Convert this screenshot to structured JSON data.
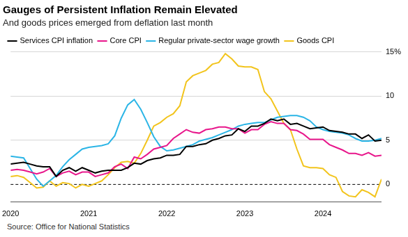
{
  "chart_data": {
    "type": "line",
    "title": "Gauges of Persistent Inflation Remain Elevated",
    "subtitle": "And goods prices emerged from deflation last month",
    "source": "Source: Office for National Statistics",
    "categories": [
      "2020",
      null,
      null,
      null,
      null,
      null,
      null,
      null,
      null,
      null,
      null,
      null,
      "2021",
      null,
      null,
      null,
      null,
      null,
      null,
      null,
      null,
      null,
      null,
      null,
      "2022",
      null,
      null,
      null,
      null,
      null,
      null,
      null,
      null,
      null,
      null,
      null,
      "2023",
      null,
      null,
      null,
      null,
      null,
      null,
      null,
      null,
      null,
      null,
      null,
      "2024",
      null,
      null,
      null,
      null,
      null,
      null,
      null,
      null,
      null
    ],
    "series": [
      {
        "name": "Services CPI inflation",
        "color": "#000000",
        "values": [
          2.3,
          2.4,
          2.5,
          2.3,
          2.1,
          2.0,
          2.0,
          0.9,
          1.6,
          1.9,
          1.5,
          1.9,
          1.6,
          1.3,
          1.5,
          1.6,
          1.6,
          1.6,
          1.9,
          2.4,
          2.3,
          2.7,
          2.9,
          3.0,
          3.3,
          3.3,
          3.4,
          4.3,
          4.3,
          4.5,
          4.6,
          5.0,
          5.2,
          5.5,
          5.6,
          6.3,
          6.0,
          6.6,
          6.6,
          6.9,
          7.4,
          7.2,
          7.4,
          6.8,
          6.9,
          6.6,
          6.3,
          6.4,
          6.5,
          6.1,
          6.0,
          5.9,
          5.7,
          5.7,
          5.2,
          5.6,
          4.9,
          5.0
        ]
      },
      {
        "name": "Core CPI",
        "color": "#e8168b",
        "values": [
          1.6,
          1.7,
          1.6,
          1.4,
          1.2,
          1.4,
          1.8,
          0.9,
          1.3,
          1.5,
          1.1,
          1.4,
          1.4,
          0.9,
          1.1,
          1.3,
          2.0,
          2.3,
          1.8,
          3.1,
          2.9,
          3.4,
          4.0,
          4.2,
          4.4,
          5.2,
          5.7,
          6.2,
          5.9,
          5.8,
          6.2,
          6.3,
          6.5,
          6.5,
          6.3,
          6.3,
          5.8,
          6.2,
          6.2,
          6.8,
          7.1,
          6.9,
          6.9,
          6.2,
          6.1,
          5.7,
          5.1,
          5.1,
          5.1,
          4.5,
          4.2,
          3.9,
          3.5,
          3.5,
          3.3,
          3.6,
          3.2,
          3.3
        ]
      },
      {
        "name": "Regular private-sector wage growth",
        "color": "#2bb5e6",
        "values": [
          3.2,
          3.1,
          3.0,
          1.8,
          0.6,
          -0.2,
          0.4,
          1.0,
          2.0,
          2.8,
          3.4,
          4.0,
          4.2,
          4.3,
          4.4,
          4.6,
          5.5,
          7.5,
          9.0,
          9.6,
          8.5,
          7.0,
          5.4,
          4.3,
          3.8,
          3.9,
          4.1,
          4.3,
          4.5,
          4.9,
          5.1,
          5.3,
          5.6,
          5.9,
          6.2,
          6.6,
          6.8,
          6.9,
          7.0,
          7.0,
          7.3,
          7.6,
          7.7,
          7.8,
          7.8,
          7.6,
          7.2,
          6.5,
          6.2,
          6.0,
          5.9,
          5.8,
          5.6,
          5.2,
          4.9,
          4.9,
          5.0,
          5.2
        ]
      },
      {
        "name": "Goods CPI",
        "color": "#f2c41c",
        "values": [
          0.9,
          1.0,
          0.8,
          0.2,
          -0.4,
          -0.3,
          0.4,
          -0.2,
          0.2,
          0.1,
          -0.4,
          0.0,
          -0.2,
          0.1,
          0.4,
          1.1,
          1.9,
          2.5,
          2.6,
          2.4,
          3.5,
          5.0,
          6.6,
          7.0,
          7.6,
          8.0,
          8.9,
          11.6,
          12.3,
          12.6,
          12.9,
          13.6,
          13.8,
          14.8,
          14.2,
          13.4,
          13.3,
          13.3,
          13.0,
          10.5,
          9.7,
          8.3,
          6.9,
          6.2,
          4.0,
          2.1,
          1.9,
          1.9,
          1.8,
          1.1,
          0.8,
          -0.8,
          -1.3,
          -1.4,
          -0.6,
          -0.9,
          -1.4,
          0.6
        ]
      }
    ],
    "ylim": [
      -2,
      15
    ],
    "yticks": [
      0,
      5,
      10,
      {
        "value": 15,
        "label": "15%"
      }
    ],
    "grid": true,
    "legend": "top-left"
  }
}
